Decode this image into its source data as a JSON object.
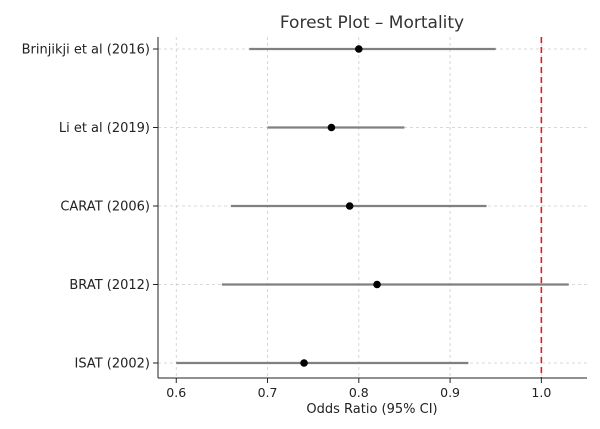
{
  "chart_data": {
    "type": "scatter",
    "subtype": "forest-plot",
    "title": "Forest Plot – Mortality",
    "xlabel": "Odds Ratio (95% CI)",
    "ylabel": "",
    "xlim": [
      0.58,
      1.05
    ],
    "xticks": [
      0.6,
      0.7,
      0.8,
      0.9,
      1.0
    ],
    "xtick_labels": [
      "0.6",
      "0.7",
      "0.8",
      "0.9",
      "1.0"
    ],
    "grid": true,
    "reference_line": {
      "x": 1.0,
      "color": "#e41a1c",
      "style": "dashed"
    },
    "colors": {
      "ci": "#808080",
      "point": "#000000",
      "axis": "#222222"
    },
    "studies": [
      {
        "name": "Brinjikji et al (2016)",
        "or": 0.8,
        "lower": 0.68,
        "upper": 0.95
      },
      {
        "name": "Li et al (2019)",
        "or": 0.77,
        "lower": 0.7,
        "upper": 0.85
      },
      {
        "name": "CARAT (2006)",
        "or": 0.79,
        "lower": 0.66,
        "upper": 0.94
      },
      {
        "name": "BRAT (2012)",
        "or": 0.82,
        "lower": 0.65,
        "upper": 1.03
      },
      {
        "name": "ISAT (2002)",
        "or": 0.74,
        "lower": 0.6,
        "upper": 0.92
      }
    ]
  }
}
